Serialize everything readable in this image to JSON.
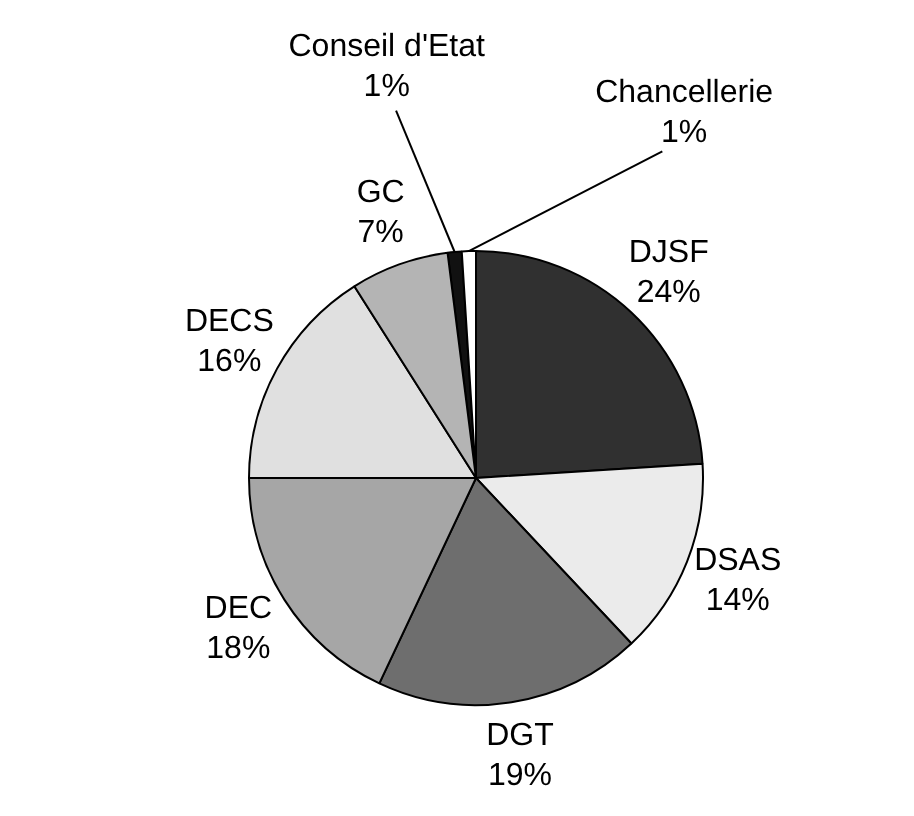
{
  "chart_data": {
    "type": "pie",
    "categories": [
      "Conseil d'Etat",
      "Chancellerie",
      "DJSF",
      "DSAS",
      "DGT",
      "DEC",
      "DECS",
      "GC"
    ],
    "values": [
      1,
      1,
      24,
      14,
      19,
      18,
      16,
      7
    ],
    "value_labels": [
      "1%",
      "1%",
      "24%",
      "14%",
      "19%",
      "18%",
      "16%",
      "7%"
    ],
    "colors": [
      "#111111",
      "#ffffff",
      "#303030",
      "#ebebeb",
      "#6e6e6e",
      "#a6a6a6",
      "#e0e0e0",
      "#b4b4b4"
    ],
    "legend": false
  }
}
